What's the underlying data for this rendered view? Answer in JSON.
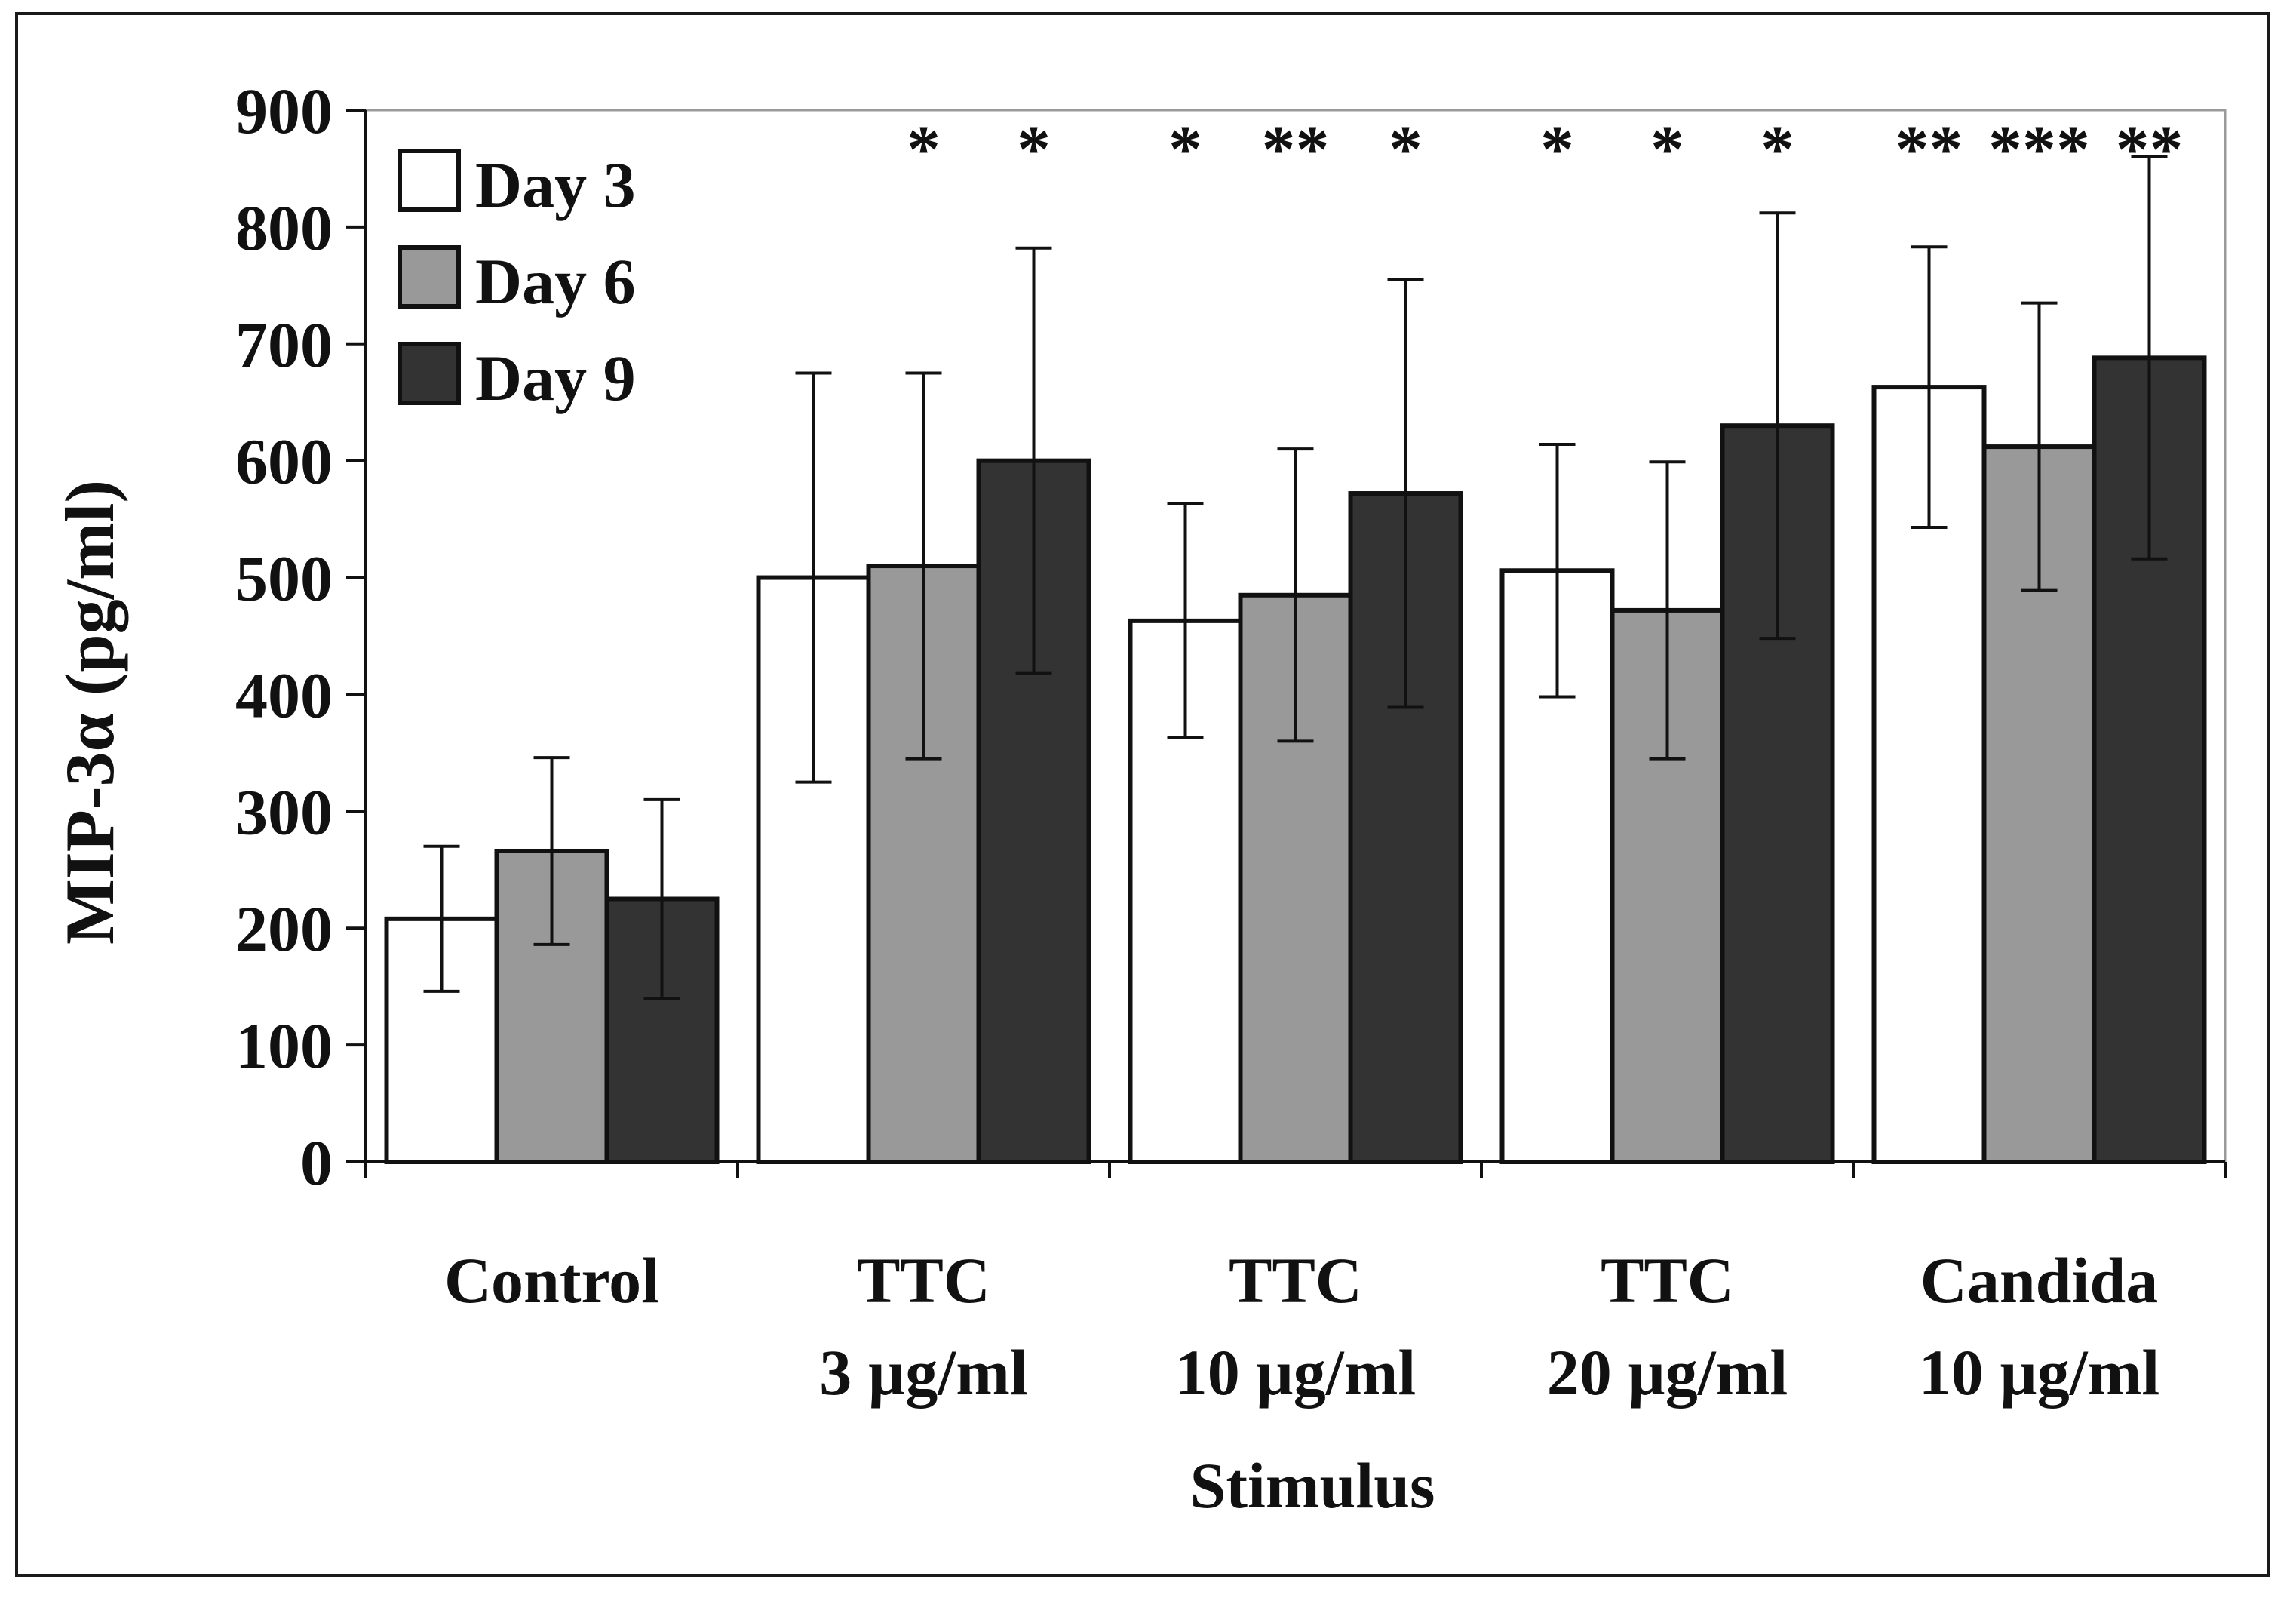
{
  "chart_data": {
    "type": "bar",
    "title": "",
    "xlabel": "Stimulus",
    "ylabel": "MIP-3α (pg/ml)",
    "ylim": [
      0,
      900
    ],
    "yticks": [
      "0",
      "100",
      "200",
      "300",
      "400",
      "500",
      "600",
      "700",
      "800",
      "900"
    ],
    "categories": [
      [
        "Control"
      ],
      [
        "TTC",
        "3 µg/ml"
      ],
      [
        "TTC",
        "10 µg/ml"
      ],
      [
        "TTC",
        "20 µg/ml"
      ],
      [
        "Candida",
        "10 µg/ml"
      ]
    ],
    "series": [
      {
        "name": "Day 3",
        "color": "#ffffff",
        "values": [
          208,
          500,
          463,
          506,
          663
        ],
        "errors": [
          62,
          175,
          100,
          108,
          120
        ]
      },
      {
        "name": "Day 6",
        "color": "#999999",
        "values": [
          266,
          510,
          485,
          472,
          612
        ],
        "errors": [
          80,
          165,
          125,
          127,
          123
        ]
      },
      {
        "name": "Day 9",
        "color": "#333333",
        "values": [
          225,
          600,
          572,
          630,
          688
        ],
        "errors": [
          85,
          182,
          183,
          182,
          172
        ]
      }
    ],
    "significance": [
      [
        "",
        "",
        ""
      ],
      [
        "",
        "*",
        "*"
      ],
      [
        "*",
        "**",
        "*"
      ],
      [
        "*",
        "*",
        "*"
      ],
      [
        "**",
        "***",
        "**"
      ]
    ],
    "legend_position": "top-left"
  }
}
